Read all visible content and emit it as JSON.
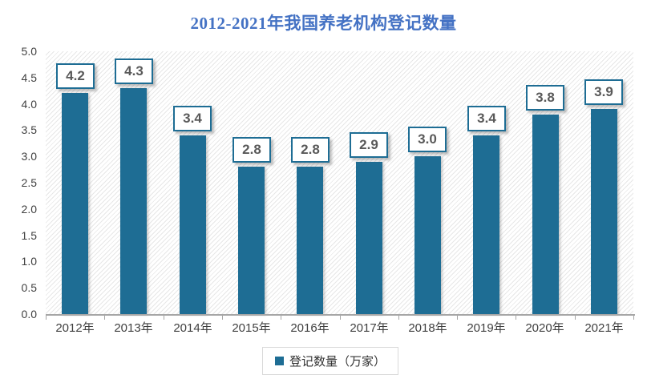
{
  "chart_data": {
    "type": "bar",
    "title": "2012-2021年我国养老机构登记数量",
    "categories": [
      "2012年",
      "2013年",
      "2014年",
      "2015年",
      "2016年",
      "2017年",
      "2018年",
      "2019年",
      "2020年",
      "2021年"
    ],
    "values": [
      4.2,
      4.3,
      3.4,
      2.8,
      2.8,
      2.9,
      3.0,
      3.4,
      3.8,
      3.9
    ],
    "data_labels": [
      "4.2",
      "4.3",
      "3.4",
      "2.8",
      "2.8",
      "2.9",
      "3.0",
      "3.4",
      "3.8",
      "3.9"
    ],
    "series_name": "登记数量（万家）",
    "y_ticks": [
      "5.0",
      "4.5",
      "4.0",
      "3.5",
      "3.0",
      "2.5",
      "2.0",
      "1.5",
      "1.0",
      "0.5",
      "0.0"
    ],
    "ylim": [
      0,
      5
    ],
    "xlabel": "",
    "ylabel": "",
    "grid": false,
    "legend_position": "bottom",
    "background_pattern": "diagonal-hatch",
    "colors": {
      "bar": "#1E6D94",
      "title": "#4472C4",
      "data_label_text": "#595959",
      "data_label_border": "#1E6D94",
      "axis_text": "#404040",
      "axis_line": "#A6A6A6",
      "legend_border": "#D9D9D9",
      "hatch_line": "#E7E7E7"
    }
  }
}
